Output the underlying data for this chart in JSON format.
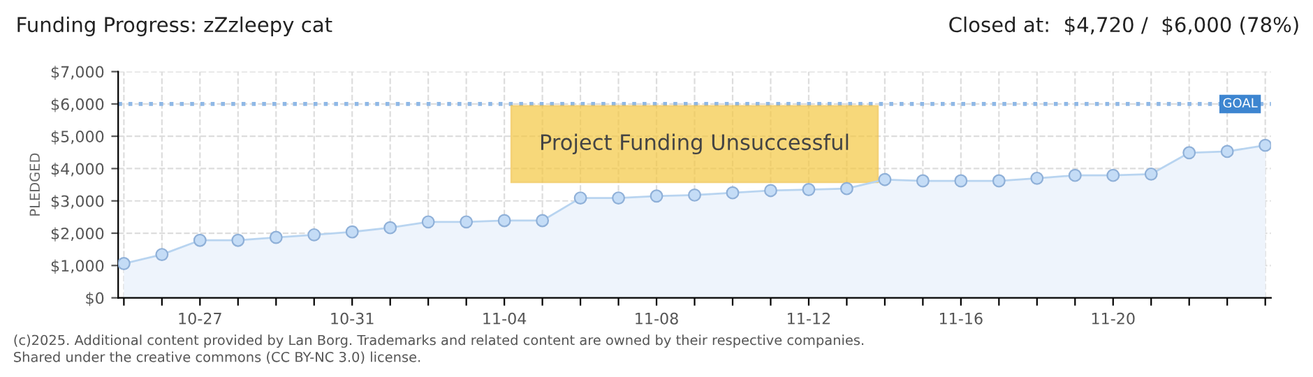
{
  "chart_data": {
    "type": "area",
    "title": "Funding Progress: zZzleepy cat",
    "subtitle": "Closed at:  $4,720 /  $6,000 (78%)",
    "ylabel": "PLEDGED",
    "categories": [
      null,
      null,
      "10-27",
      null,
      null,
      null,
      "10-31",
      null,
      null,
      null,
      "11-04",
      null,
      null,
      null,
      "11-08",
      null,
      null,
      null,
      "11-12",
      null,
      null,
      null,
      "11-16",
      null,
      null,
      null,
      "11-20",
      null,
      null,
      null,
      null
    ],
    "series": [
      {
        "color": "#b8d4f0",
        "values": [
          1060,
          1340,
          1780,
          1780,
          1870,
          1950,
          2040,
          2170,
          2350,
          2350,
          2390,
          2390,
          3090,
          3090,
          3150,
          3180,
          3250,
          3320,
          3350,
          3380,
          3660,
          3620,
          3620,
          3620,
          3700,
          3790,
          3790,
          3830,
          4490,
          4530,
          4720
        ]
      }
    ],
    "ylim": [
      0,
      7000
    ],
    "yticks": [
      {
        "value": 0,
        "label": "$0"
      },
      {
        "value": 1000,
        "label": "$1,000"
      },
      {
        "value": 2000,
        "label": "$2,000"
      },
      {
        "value": 3000,
        "label": "$3,000"
      },
      {
        "value": 4000,
        "label": "$4,000"
      },
      {
        "value": 5000,
        "label": "$5,000"
      },
      {
        "value": 6000,
        "label": "$6,000"
      },
      {
        "value": 7000,
        "label": "$7,000"
      }
    ],
    "ref_lines": [
      {
        "axis": "y",
        "value": 6000,
        "label": "GOAL",
        "color": "#8fb8e6",
        "line_style": "dotted"
      }
    ],
    "annotations": [
      "Project Funding Unsuccessful",
      "(c)2025. Additional content provided by Lan Borg. Trademarks and related content are owned by their respective companies.",
      "Shared under the creative commons (CC BY-NC 3.0) license."
    ],
    "grid": true,
    "marker": "circle"
  }
}
